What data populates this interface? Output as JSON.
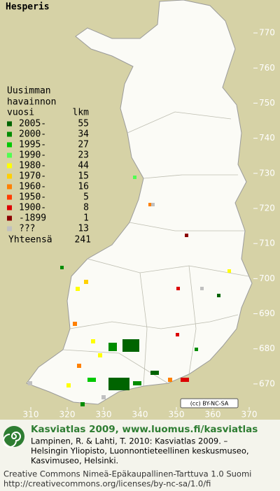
{
  "title": "Hesperis",
  "legend": {
    "heading": [
      "Uusimman",
      "havainnon"
    ],
    "year_header": "vuosi",
    "count_header": "lkm",
    "rows": [
      {
        "label": "2005-",
        "count": 55,
        "color": "#006400"
      },
      {
        "label": "2000-",
        "count": 34,
        "color": "#008c00"
      },
      {
        "label": "1995-",
        "count": 27,
        "color": "#00c800"
      },
      {
        "label": "1990-",
        "count": 23,
        "color": "#50ff50"
      },
      {
        "label": "1980-",
        "count": 44,
        "color": "#ffff00"
      },
      {
        "label": "1970-",
        "count": 15,
        "color": "#ffd000"
      },
      {
        "label": "1960-",
        "count": 16,
        "color": "#ff8000"
      },
      {
        "label": "1950-",
        "count": 5,
        "color": "#ff3c00"
      },
      {
        "label": "1900-",
        "count": 8,
        "color": "#dc0000"
      },
      {
        "label": "-1899",
        "count": 1,
        "color": "#8c0000"
      },
      {
        "label": "???",
        "count": 13,
        "color": "#c0c0c0"
      }
    ],
    "total_label": "Yhteensä",
    "total_count": 241
  },
  "map": {
    "ylim": [
      665,
      775
    ],
    "yticks": [
      770,
      760,
      750,
      740,
      730,
      720,
      710,
      700,
      690,
      680,
      670
    ],
    "xlim": [
      305,
      380
    ],
    "xticks": [
      310,
      320,
      330,
      340,
      350,
      360,
      370
    ]
  },
  "license_badge": "(cc) BY-NC-SA",
  "footer": {
    "site": "Kasviatlas 2009, www.luomus.fi/kasviatlas",
    "citation": [
      "Lampinen, R. & Lahti, T. 2010: Kasviatlas 2009. –",
      "Helsingin Yliopisto, Luonnontieteellinen keskusmuseo,",
      "Kasvimuseo, Helsinki."
    ],
    "license": [
      "Creative Commons Nimeä-Epäkaupallinen-Tarttuva 1.0 Suomi",
      "http://creativecommons.org/licenses/by-nc-sa/1.0/fi"
    ]
  }
}
